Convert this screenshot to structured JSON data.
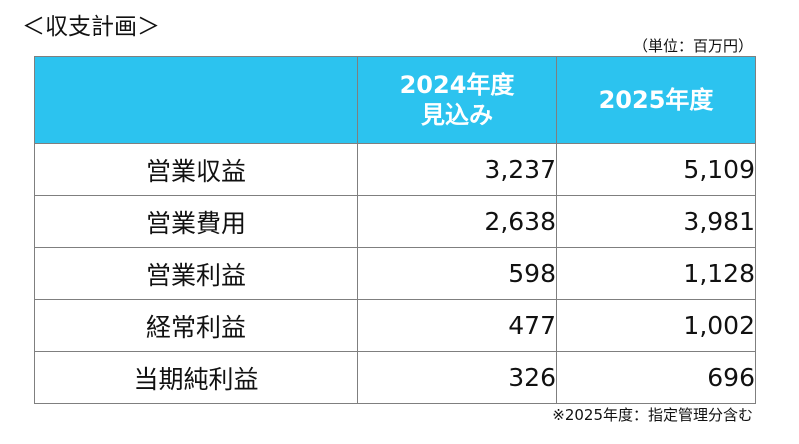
{
  "title": "＜収支計画＞",
  "unit_note": "（単位：百万円）",
  "table": {
    "header": {
      "corner": "",
      "col_2024_line1": "2024年度",
      "col_2024_line2": "見込み",
      "col_2025": "2025年度"
    },
    "rows": [
      {
        "label": "営業収益",
        "fy2024": "3,237",
        "fy2025": "5,109"
      },
      {
        "label": "営業費用",
        "fy2024": "2,638",
        "fy2025": "3,981"
      },
      {
        "label": "営業利益",
        "fy2024": "598",
        "fy2025": "1,128"
      },
      {
        "label": "経常利益",
        "fy2024": "477",
        "fy2025": "1,002"
      },
      {
        "label": "当期純利益",
        "fy2024": "326",
        "fy2025": "696"
      }
    ]
  },
  "footnote": "※2025年度：指定管理分含む",
  "colors": {
    "header_background": "#2cc3ef",
    "header_text": "#ffffff",
    "border": "#7f7f7f"
  }
}
